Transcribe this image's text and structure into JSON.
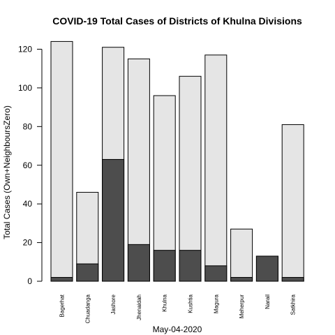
{
  "chart_data": {
    "type": "bar",
    "title": "COVID-19 Total Cases of Districts of Khulna Divisions",
    "xlabel": "May-04-2020",
    "ylabel": "Total Cases (Own+NeighboursZero)",
    "ylim": [
      0,
      125
    ],
    "yticks": [
      0,
      20,
      40,
      60,
      80,
      100,
      120
    ],
    "grid": false,
    "stacked_overlay": true,
    "categories": [
      "Bagerhat",
      "Chuadanga",
      "Jashore",
      "Jhenaidah",
      "Khulna",
      "Kushtia",
      "Magura",
      "Meherpur",
      "Narail",
      "Satkhira"
    ],
    "series": [
      {
        "color": "#e5e5e5",
        "values": [
          124,
          46,
          121,
          115,
          96,
          106,
          117,
          27,
          13,
          81
        ]
      },
      {
        "color": "#4d4d4d",
        "values": [
          2,
          9,
          63,
          19,
          16,
          16,
          8,
          2,
          13,
          2
        ]
      }
    ]
  }
}
